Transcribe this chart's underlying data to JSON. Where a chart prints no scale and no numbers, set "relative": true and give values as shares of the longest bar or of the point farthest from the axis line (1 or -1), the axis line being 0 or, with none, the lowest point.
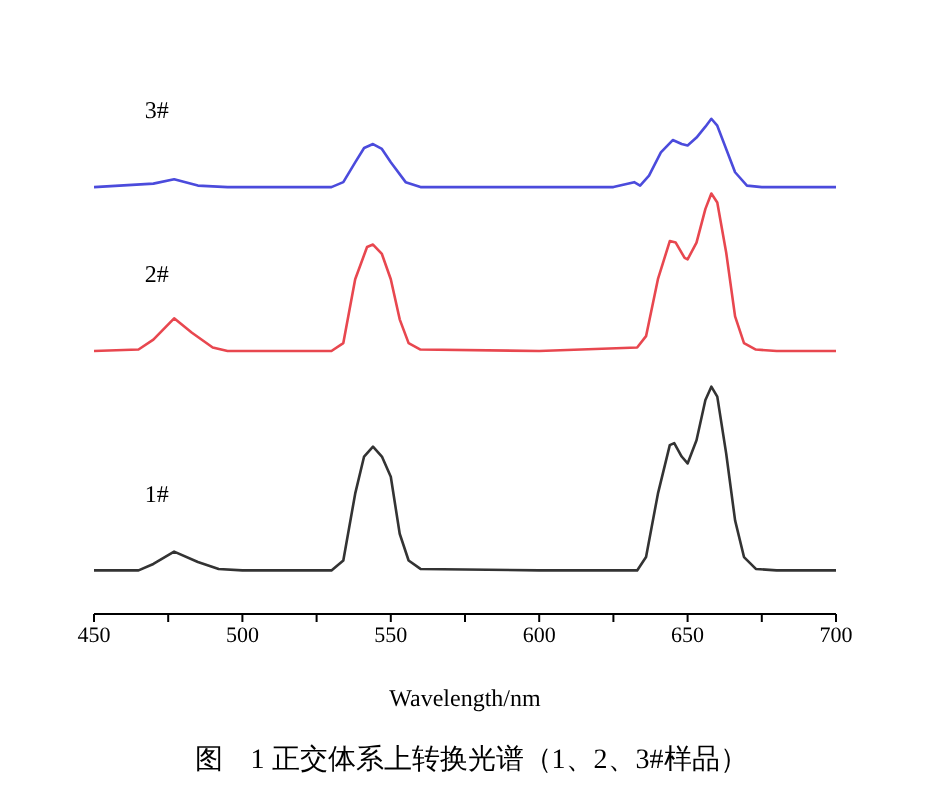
{
  "chart_data": {
    "type": "line",
    "xlabel": "Wavelength/nm",
    "xlim": [
      450,
      700
    ],
    "xticks": [
      450,
      {
        "value": 475,
        "label": null
      },
      500,
      {
        "value": 525,
        "label": null
      },
      550,
      {
        "value": 575,
        "label": null
      },
      600,
      {
        "value": 625,
        "label": null
      },
      650,
      {
        "value": 675,
        "label": null
      },
      700
    ],
    "relative": true,
    "annotations": [
      "图　1 正交体系上转换光谱（1、2、3#样品）"
    ],
    "series": [
      {
        "name": "1#",
        "color": "#333333",
        "x": [
          450,
          465,
          470,
          477,
          485,
          492,
          500,
          530,
          534,
          538,
          541,
          544,
          547,
          550,
          553,
          556,
          560,
          600,
          633,
          636,
          640,
          644,
          645.5,
          648,
          650,
          653,
          656,
          658,
          660,
          663,
          666,
          669,
          673,
          680,
          700
        ],
        "values": [
          0.088,
          0.088,
          0.101,
          0.126,
          0.105,
          0.091,
          0.088,
          0.088,
          0.108,
          0.243,
          0.318,
          0.338,
          0.318,
          0.277,
          0.162,
          0.108,
          0.091,
          0.088,
          0.088,
          0.115,
          0.243,
          0.341,
          0.345,
          0.318,
          0.304,
          0.351,
          0.432,
          0.459,
          0.439,
          0.324,
          0.189,
          0.115,
          0.091,
          0.088,
          0.088
        ]
      },
      {
        "name": "2#",
        "color": "#e8474f",
        "x": [
          450,
          465,
          470,
          477,
          483,
          490,
          495,
          530,
          534,
          538,
          542,
          544,
          547,
          550,
          553,
          556,
          560,
          600,
          633,
          636,
          640,
          644,
          646,
          649,
          650,
          653,
          656,
          658,
          660,
          663,
          666,
          669,
          673,
          680,
          700
        ],
        "values": [
          0.531,
          0.534,
          0.554,
          0.597,
          0.568,
          0.538,
          0.531,
          0.531,
          0.547,
          0.676,
          0.741,
          0.746,
          0.727,
          0.676,
          0.595,
          0.547,
          0.534,
          0.531,
          0.538,
          0.561,
          0.676,
          0.753,
          0.75,
          0.719,
          0.716,
          0.75,
          0.818,
          0.849,
          0.831,
          0.73,
          0.601,
          0.547,
          0.534,
          0.531,
          0.531
        ]
      },
      {
        "name": "3#",
        "color": "#4b4bdc",
        "x": [
          450,
          470,
          477,
          485,
          495,
          530,
          534,
          538,
          541,
          544,
          547,
          550,
          555,
          560,
          625,
          632,
          634,
          637,
          641,
          645,
          648,
          650,
          653,
          656,
          658,
          660,
          663,
          666,
          670,
          675,
          700
        ],
        "values": [
          0.862,
          0.869,
          0.878,
          0.865,
          0.862,
          0.862,
          0.872,
          0.912,
          0.941,
          0.949,
          0.939,
          0.912,
          0.872,
          0.862,
          0.862,
          0.872,
          0.865,
          0.885,
          0.932,
          0.957,
          0.949,
          0.946,
          0.962,
          0.984,
          1,
          0.986,
          0.939,
          0.892,
          0.865,
          0.862,
          0.862
        ]
      }
    ]
  }
}
